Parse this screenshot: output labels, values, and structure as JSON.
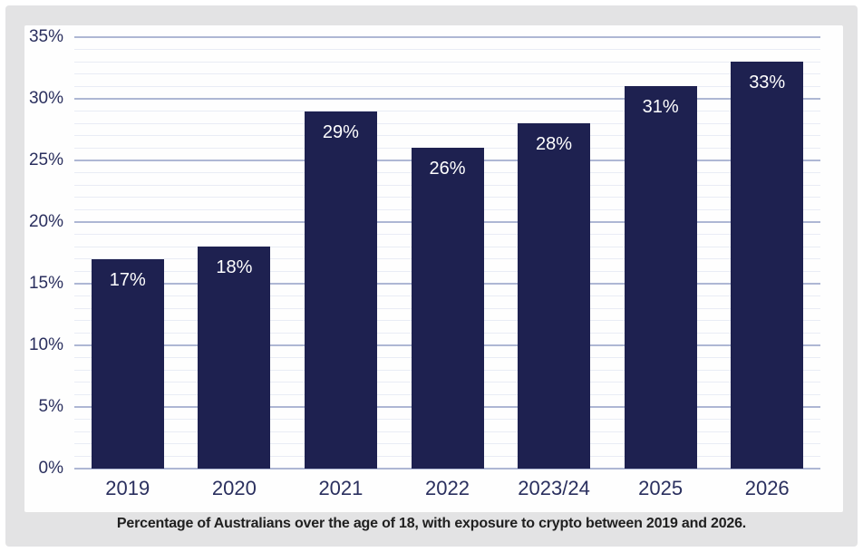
{
  "figure": {
    "caption": "Percentage of Australians over the age of 18, with exposure to crypto between 2019 and 2026.",
    "background_color": "#e3e3e4",
    "panel_color": "#fefefe"
  },
  "chart_data": {
    "type": "bar",
    "title": "",
    "xlabel": "",
    "ylabel": "",
    "categories": [
      "2019",
      "2020",
      "2021",
      "2022",
      "2023/24",
      "2025",
      "2026"
    ],
    "values": [
      17,
      18,
      29,
      26,
      28,
      31,
      33
    ],
    "value_labels": [
      "17%",
      "18%",
      "29%",
      "26%",
      "28%",
      "31%",
      "33%"
    ],
    "ylim": [
      0,
      35
    ],
    "ytick_step": 5,
    "ytick_labels": [
      "0%",
      "5%",
      "10%",
      "15%",
      "20%",
      "25%",
      "30%",
      "35%"
    ],
    "grid": "horizontal major every 5%, faint minor every 1%",
    "legend": "none",
    "bar_color": "#1e2150",
    "bar_label_color": "#ffffff",
    "axis_text_color": "#2a2f5e",
    "major_gridline_color": "#aeb7d4",
    "minor_gridline_color": "#e9ecf5"
  }
}
